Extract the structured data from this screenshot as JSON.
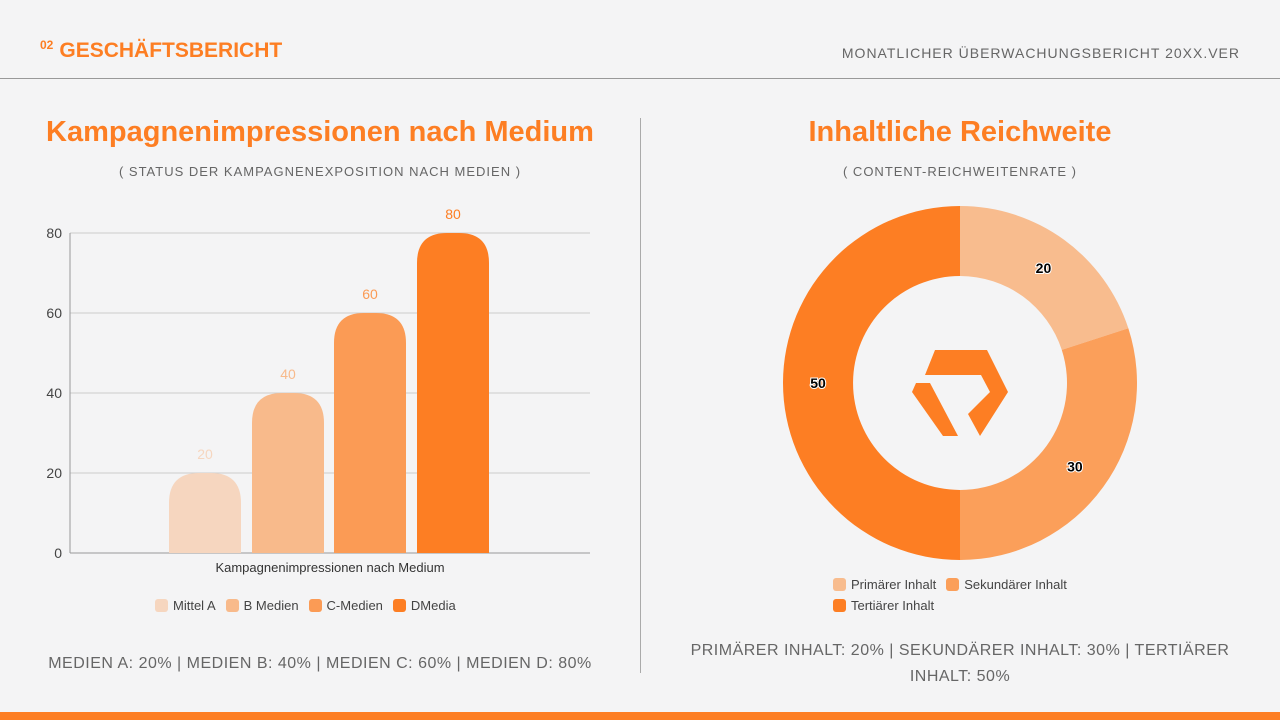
{
  "header": {
    "number": "02",
    "title": "GESCHÄFTSBERICHT",
    "right": "MONATLICHER ÜBERWACHUNGSBERICHT 20XX.VER"
  },
  "left": {
    "title": "Kampagnenimpressionen nach Medium",
    "subtitle": "( STATUS DER KAMPAGNENEXPOSITION NACH MEDIEN )",
    "summary": "MEDIEN A: 20% | MEDIEN B: 40% | MEDIEN C: 60% | MEDIEN D: 80%"
  },
  "right": {
    "title": "Inhaltliche Reichweite",
    "subtitle": "( CONTENT-REICHWEITENRATE )",
    "summary": "PRIMÄRER INHALT: 20% | SEKUNDÄRER INHALT: 30% | TERTIÄRER INHALT: 50%"
  },
  "chart_data": [
    {
      "type": "bar",
      "xlabel": "Kampagnenimpressionen nach Medium",
      "ylim": [
        0,
        80
      ],
      "yticks": [
        0,
        20,
        40,
        60,
        80
      ],
      "grid": true,
      "legend": "bottom",
      "categories": [
        "Mittel A",
        "B Medien",
        "C-Medien",
        "DMedia"
      ],
      "values": [
        20,
        40,
        60,
        80
      ],
      "colors": [
        "#f6d6bf",
        "#f8ba8b",
        "#fb9b55",
        "#fd7e23"
      ]
    },
    {
      "type": "pie",
      "donut": true,
      "legend": "bottom",
      "categories": [
        "Primärer Inhalt",
        "Sekundärer Inhalt",
        "Tertiärer Inhalt"
      ],
      "values": [
        20,
        30,
        50
      ],
      "colors": [
        "#f8bc8e",
        "#fb9f5a",
        "#fd7e23"
      ],
      "center_icon": "hexagon-logo-icon"
    }
  ]
}
